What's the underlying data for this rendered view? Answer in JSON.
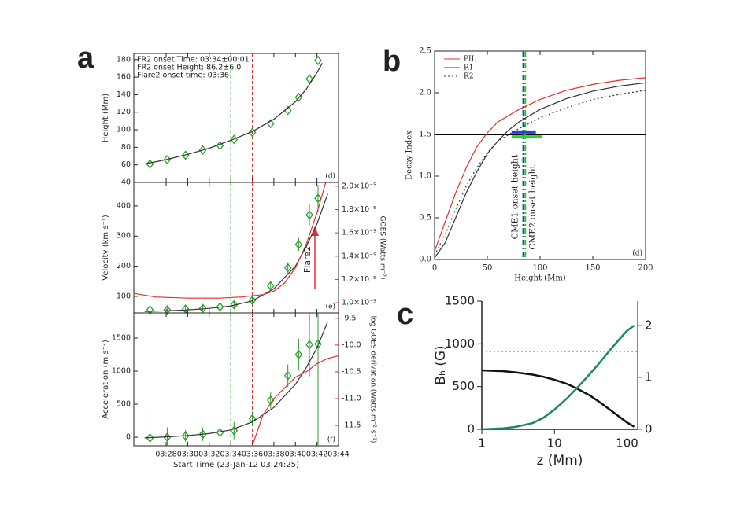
{
  "chart_data": [
    {
      "type": "line",
      "label": "a",
      "tag": "(d)",
      "ylabel": "Height (Mm)",
      "xlim": [
        25,
        44
      ],
      "ylim": [
        40,
        187
      ],
      "yticks": [
        40,
        60,
        80,
        100,
        120,
        140,
        160,
        180
      ],
      "annotations": [
        "FR2 onset Time:  03:34±00:01",
        "FR2 onset Height: 86.2±6.0",
        "Flare2 onset time: 03:36"
      ],
      "vlines": [
        {
          "value": 34,
          "color": "#2ca02c",
          "style": "dashed"
        },
        {
          "value": 36,
          "color": "#e03030",
          "style": "dashed"
        }
      ],
      "hlines": [
        {
          "value": 86.2,
          "color": "#2ca02c",
          "style": "dashdot"
        }
      ],
      "series": [
        {
          "color": "#2ca02c",
          "marker": "diamond",
          "x": [
            26.5,
            28.1,
            29.8,
            31.4,
            33.0,
            34.3,
            36.0,
            37.7,
            39.3,
            40.3,
            41.3,
            42.1
          ],
          "values": [
            61,
            66,
            71,
            77,
            82,
            89,
            97,
            107,
            122,
            137,
            158,
            179
          ]
        },
        {
          "color": "#333333",
          "x": [
            26,
            28,
            30,
            32,
            34,
            36,
            38,
            40,
            41,
            42,
            42.5
          ],
          "values": [
            61,
            66,
            72,
            79,
            88,
            98,
            112,
            132,
            146,
            165,
            176
          ]
        }
      ]
    },
    {
      "type": "line",
      "tag": "(e)",
      "ylabel": "Velocity (km s⁻¹)",
      "y2label": "GOES (Watts m⁻²)",
      "y2color": "#e03030",
      "xlim": [
        25,
        44
      ],
      "ylim": [
        45,
        478
      ],
      "yticks": [
        100,
        200,
        300,
        400
      ],
      "y2lim": [
        9.13e-06,
        2.033e-05
      ],
      "y2ticks": [
        {
          "value": 1e-05,
          "label": "1.0×10⁻⁵"
        },
        {
          "value": 1.2e-05,
          "label": "1.2×10⁻⁵"
        },
        {
          "value": 1.4e-05,
          "label": "1.4×10⁻⁵"
        },
        {
          "value": 1.6e-05,
          "label": "1.6×10⁻⁵"
        },
        {
          "value": 1.8e-05,
          "label": "1.8×10⁻⁵"
        },
        {
          "value": 2e-05,
          "label": "2.0×10⁻⁵"
        }
      ],
      "annotations": [
        "Flare2"
      ],
      "vlines": [
        {
          "value": 34,
          "color": "#2ca02c",
          "style": "dashed"
        },
        {
          "value": 36,
          "color": "#e03030",
          "style": "dashed"
        }
      ],
      "series": [
        {
          "color": "#2ca02c",
          "marker": "diamond",
          "x": [
            26.5,
            28.1,
            29.8,
            31.4,
            33.0,
            34.3,
            36.0,
            37.7,
            39.3,
            40.3,
            41.3,
            42.1
          ],
          "values": [
            55,
            55,
            58,
            60,
            65,
            72,
            87,
            135,
            195,
            272,
            370,
            425
          ],
          "errors": [
            25,
            15,
            12,
            12,
            12,
            12,
            12,
            15,
            18,
            22,
            35,
            45
          ]
        },
        {
          "color": "#333333",
          "x": [
            26,
            28,
            30,
            32,
            34,
            36,
            38,
            40,
            41,
            42,
            43
          ],
          "values": [
            50,
            52,
            55,
            60,
            68,
            85,
            125,
            200,
            265,
            340,
            440
          ]
        },
        {
          "color": "#e03030",
          "axis": "y2",
          "x": [
            25,
            27,
            30,
            33,
            35,
            36,
            37,
            38,
            39,
            40,
            41,
            42,
            42.8
          ],
          "values": [
            1.08e-05,
            1.05e-05,
            1.04e-05,
            1.04e-05,
            1.05e-05,
            1.06e-05,
            1.07e-05,
            1.1e-05,
            1.17e-05,
            1.3e-05,
            1.5e-05,
            1.77e-05,
            2.03e-05
          ]
        }
      ]
    },
    {
      "type": "line",
      "tag": "(f)",
      "ylabel": "Acceleration (m s⁻²)",
      "y2label": "log GOES derivation (Watts m⁻² s⁻¹)",
      "y2color": "#e03030",
      "xlabel": "Start Time (23-Jan-12 03:24:25)",
      "xlim": [
        25,
        44
      ],
      "xticks": [
        {
          "value": 28,
          "label": "03:28"
        },
        {
          "value": 30,
          "label": "03:30"
        },
        {
          "value": 32,
          "label": "03:32"
        },
        {
          "value": 34,
          "label": "03:34"
        },
        {
          "value": 36,
          "label": "03:36"
        },
        {
          "value": 38,
          "label": "03:38"
        },
        {
          "value": 40,
          "label": "03:40"
        },
        {
          "value": 42,
          "label": "03:42"
        },
        {
          "value": 44,
          "label": "03:44"
        }
      ],
      "ylim": [
        -130,
        1880
      ],
      "yticks": [
        0,
        500,
        1000,
        1500
      ],
      "y2lim": [
        -11.88,
        -9.4
      ],
      "y2ticks": [
        -11.5,
        {
          "value": -11,
          "label": "-11.0"
        },
        -10.5,
        {
          "value": -10,
          "label": "-10.0"
        },
        -9.5
      ],
      "vlines": [
        {
          "value": 34,
          "color": "#2ca02c",
          "style": "dashed"
        },
        {
          "value": 36,
          "color": "#e03030",
          "style": "dashed"
        }
      ],
      "series": [
        {
          "color": "#2ca02c",
          "marker": "diamond",
          "x": [
            26.5,
            28.1,
            29.8,
            31.4,
            33.0,
            34.3,
            36.0,
            37.7,
            39.3,
            40.3,
            41.3,
            42.1
          ],
          "values": [
            -10,
            0,
            20,
            45,
            70,
            100,
            280,
            560,
            930,
            1250,
            1400,
            1410
          ],
          "errors": [
            460,
            150,
            90,
            100,
            110,
            130,
            110,
            130,
            170,
            240,
            480,
            1600
          ]
        },
        {
          "color": "#333333",
          "x": [
            26,
            28,
            30,
            32,
            34,
            36,
            38,
            40,
            41,
            42,
            43
          ],
          "values": [
            -10,
            5,
            25,
            55,
            110,
            230,
            450,
            800,
            1050,
            1350,
            1750
          ]
        },
        {
          "color": "#e03030",
          "axis": "y2",
          "x": [
            36,
            37,
            38,
            39,
            40,
            41,
            42,
            43,
            44
          ],
          "values": [
            -11.88,
            -11.3,
            -11.0,
            -10.8,
            -10.6,
            -10.5,
            -10.35,
            -10.25,
            -10.2
          ]
        }
      ]
    },
    {
      "type": "line",
      "label": "b",
      "tag": "(d)",
      "ylabel": "Decay Index",
      "xlabel": "Height (Mm)",
      "legend": "upper left",
      "xlim": [
        0,
        200
      ],
      "xticks": [
        0,
        50,
        100,
        150,
        200
      ],
      "ylim": [
        0,
        2.5
      ],
      "yticks": [
        {
          "value": 0,
          "label": "0.0"
        },
        0.5,
        {
          "value": 1,
          "label": "1.0"
        },
        1.5,
        {
          "value": 2,
          "label": "2.0"
        },
        2.5
      ],
      "hlines": [
        {
          "value": 1.5,
          "color": "#000000",
          "width": 2
        }
      ],
      "vlines": [
        {
          "value": 84,
          "color": "#2040e0",
          "style": "dashdot",
          "width": 2,
          "text": "CME1 onset height"
        },
        {
          "value": 86,
          "color": "#30c030",
          "style": "dashdot",
          "width": 2,
          "text": "CME2 onset height"
        }
      ],
      "hbars": [
        {
          "y": 1.53,
          "x": [
            73,
            96
          ],
          "color": "#2040e0"
        },
        {
          "y": 1.47,
          "x": [
            73,
            102
          ],
          "color": "#30d030"
        }
      ],
      "series": [
        {
          "name": "PIL",
          "color": "#e03030",
          "x": [
            0,
            10,
            20,
            30,
            40,
            50,
            60,
            80,
            100,
            125,
            150,
            175,
            200
          ],
          "values": [
            0.1,
            0.45,
            0.8,
            1.1,
            1.35,
            1.52,
            1.65,
            1.8,
            1.92,
            2.03,
            2.1,
            2.15,
            2.18
          ]
        },
        {
          "name": "R1",
          "color": "#333333",
          "x": [
            0,
            10,
            20,
            30,
            40,
            50,
            60,
            70,
            80,
            100,
            125,
            150,
            175,
            200
          ],
          "values": [
            0.02,
            0.2,
            0.5,
            0.8,
            1.05,
            1.27,
            1.42,
            1.55,
            1.65,
            1.8,
            1.93,
            2.02,
            2.08,
            2.12
          ]
        },
        {
          "name": "R2",
          "color": "#333333",
          "style": "dotted",
          "x": [
            0,
            10,
            20,
            30,
            40,
            50,
            60,
            80,
            100,
            125,
            150,
            175,
            200
          ],
          "values": [
            0.05,
            0.3,
            0.6,
            0.88,
            1.1,
            1.28,
            1.42,
            1.57,
            1.7,
            1.82,
            1.92,
            1.98,
            2.03
          ]
        }
      ]
    },
    {
      "type": "line",
      "label": "c",
      "ylabel": "Bₕ (G)",
      "xlabel": "z (Mm)",
      "xscale": "log",
      "y2color": "#1a8a5a",
      "xlim": [
        1,
        140
      ],
      "xticks": [
        1,
        10,
        100
      ],
      "ylim": [
        0,
        1500
      ],
      "yticks": [
        0,
        500,
        1000,
        1500
      ],
      "y2lim": [
        0,
        2.47
      ],
      "y2ticks": [
        0,
        1,
        2
      ],
      "hlines": [
        {
          "value": 1.5,
          "axis": "y2",
          "color": "#1a8a5a",
          "style": "dotted"
        }
      ],
      "series": [
        {
          "color": "#111111",
          "width": 2.5,
          "x": [
            1,
            2,
            3,
            5,
            7,
            10,
            15,
            20,
            30,
            40,
            60,
            80,
            100,
            125
          ],
          "values": [
            690,
            680,
            665,
            640,
            615,
            580,
            530,
            480,
            400,
            330,
            220,
            140,
            80,
            30
          ]
        },
        {
          "color": "#1a8a5a",
          "width": 2.5,
          "axis": "y2",
          "x": [
            1,
            2,
            3,
            5,
            7,
            10,
            15,
            20,
            30,
            40,
            60,
            80,
            100,
            125
          ],
          "values": [
            0,
            0.02,
            0.05,
            0.12,
            0.22,
            0.38,
            0.6,
            0.78,
            1.05,
            1.25,
            1.55,
            1.75,
            1.9,
            2.0
          ]
        }
      ]
    }
  ]
}
